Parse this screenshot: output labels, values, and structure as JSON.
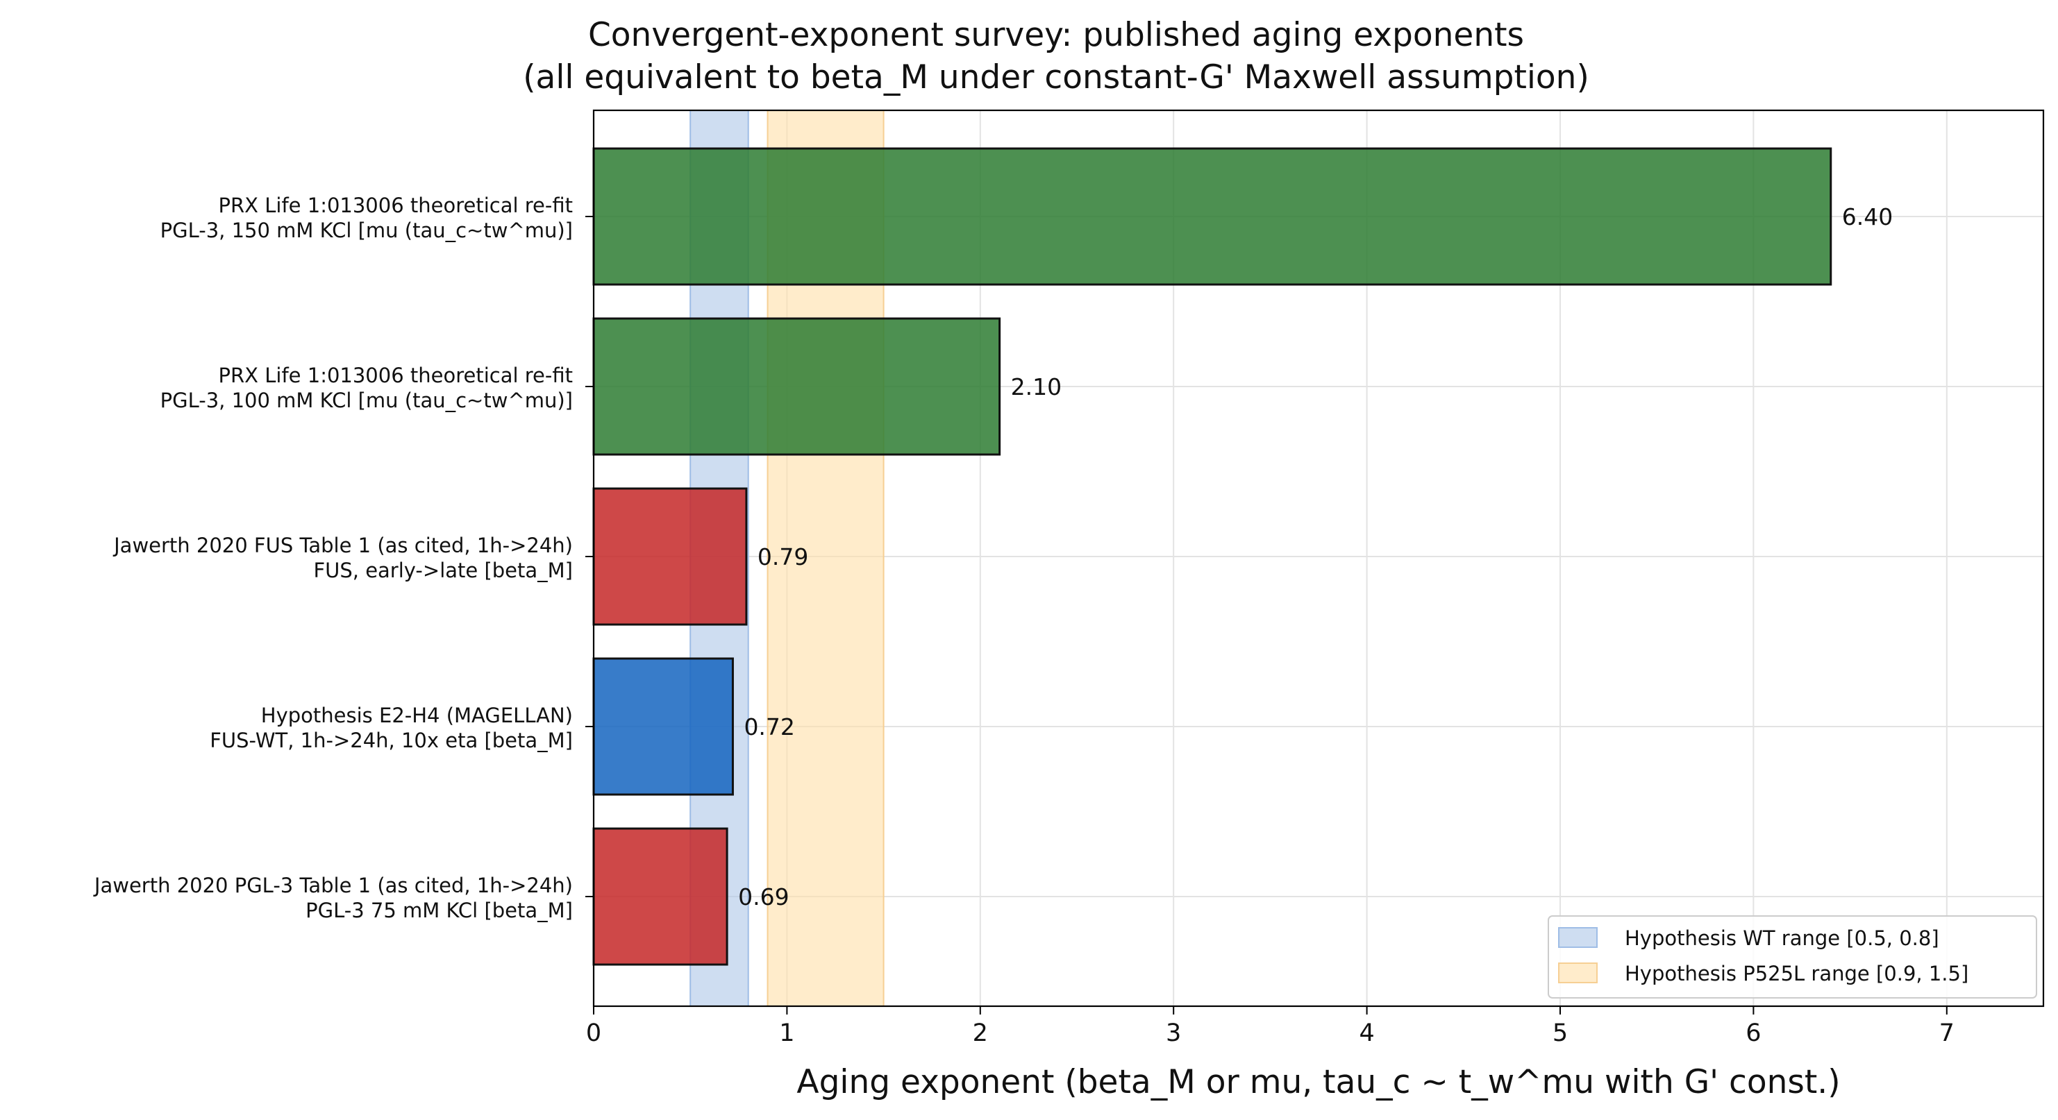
{
  "chart_data": {
    "type": "bar",
    "orientation": "horizontal",
    "title": [
      "Convergent-exponent survey: published aging exponents",
      "(all equivalent to beta_M under constant-G' Maxwell assumption)"
    ],
    "xlabel": "Aging exponent (beta_M or mu, tau_c ~ t_w^mu with G' const.)",
    "ylabel": "",
    "xlim": [
      0,
      7.5
    ],
    "xticks": [
      "0",
      "1",
      "2",
      "3",
      "4",
      "5",
      "6",
      "7"
    ],
    "grid": true,
    "legend_position": "lower-right",
    "bars": [
      {
        "label": [
          "PRX Life 1:013006 theoretical re-fit",
          "PGL-3, 150 mM KCl [mu (tau_c~tw^mu)]"
        ],
        "value": 6.4,
        "value_label": "6.40",
        "color": "#2e7d32"
      },
      {
        "label": [
          "PRX Life 1:013006 theoretical re-fit",
          "PGL-3, 100 mM KCl [mu (tau_c~tw^mu)]"
        ],
        "value": 2.1,
        "value_label": "2.10",
        "color": "#2e7d32"
      },
      {
        "label": [
          "Jawerth 2020 FUS Table 1 (as cited, 1h->24h)",
          "FUS, early->late [beta_M]"
        ],
        "value": 0.79,
        "value_label": "0.79",
        "color": "#c62828"
      },
      {
        "label": [
          "Hypothesis E2-H4 (MAGELLAN)",
          "FUS-WT, 1h->24h, 10x eta [beta_M]"
        ],
        "value": 0.72,
        "value_label": "0.72",
        "color": "#1565c0"
      },
      {
        "label": [
          "Jawerth 2020 PGL-3 Table 1 (as cited, 1h->24h)",
          "PGL-3 75 mM KCl [beta_M]"
        ],
        "value": 0.69,
        "value_label": "0.69",
        "color": "#c62828"
      }
    ],
    "bands": [
      {
        "name": "Hypothesis WT range [0.5, 0.8]",
        "range": [
          0.5,
          0.8
        ],
        "color": "#aec7e8"
      },
      {
        "name": "Hypothesis P525L range [0.9, 1.5]",
        "range": [
          0.9,
          1.5
        ],
        "color": "#ffdfa8"
      }
    ]
  }
}
